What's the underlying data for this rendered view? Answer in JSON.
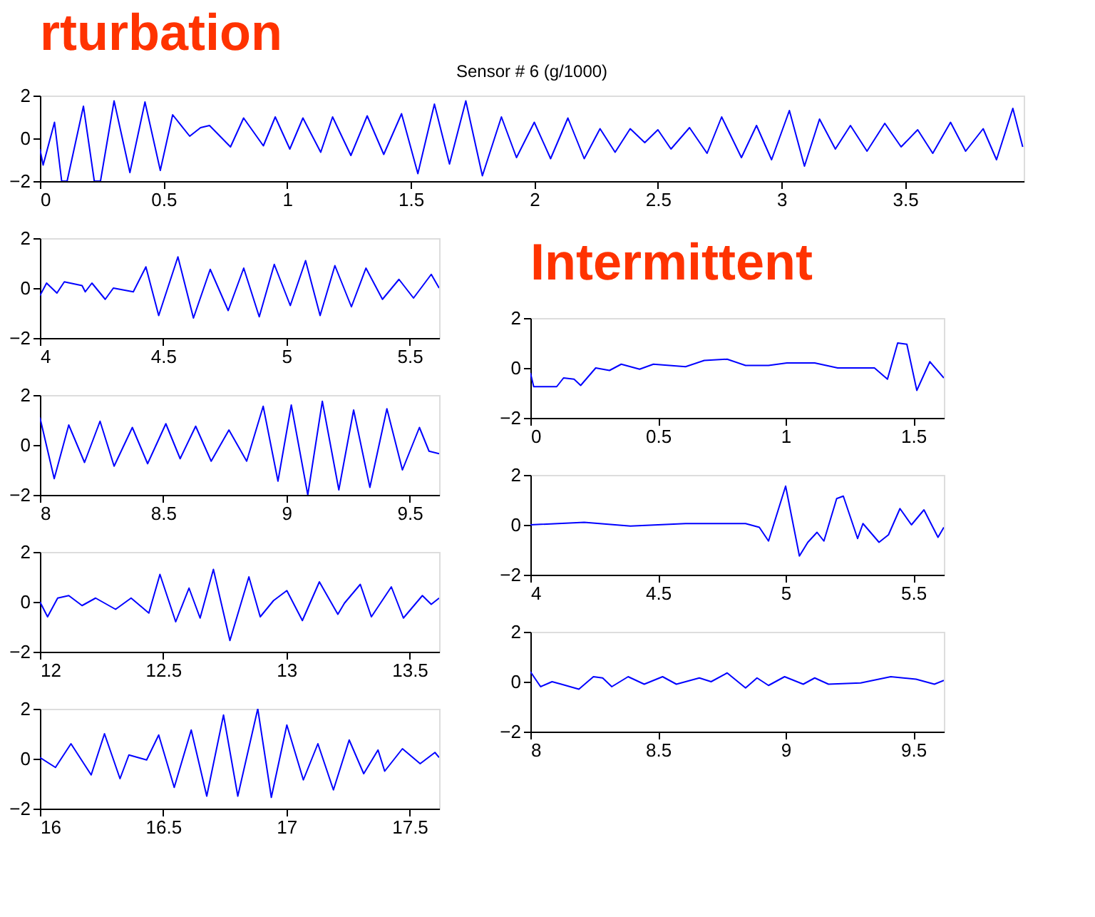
{
  "chart_data": [
    {
      "type": "line",
      "title": "Sensor # 6 (g/1000)",
      "annotations": [
        "rturbation"
      ],
      "x": [
        0,
        0.013,
        0.059,
        0.088,
        0.11,
        0.176,
        0.22,
        0.245,
        0.3,
        0.364,
        0.425,
        0.487,
        0.537,
        0.606,
        0.65,
        0.686,
        0.771,
        0.824,
        0.904,
        0.952,
        1.011,
        1.064,
        1.136,
        1.184,
        1.258,
        1.324,
        1.391,
        1.463,
        1.529,
        1.596,
        1.657,
        1.723,
        1.79,
        1.867,
        1.928,
        2.0,
        2.066,
        2.136,
        2.202,
        2.266,
        2.327,
        2.388,
        2.447,
        2.5,
        2.553,
        2.628,
        2.699,
        2.758,
        2.838,
        2.899,
        2.96,
        3.032,
        3.093,
        3.154,
        3.218,
        3.279,
        3.346,
        3.418,
        3.484,
        3.551,
        3.612,
        3.684,
        3.745,
        3.816,
        3.87,
        3.936,
        3.976
      ],
      "series": [
        {
          "color": "#0000ff",
          "values": [
            -0.5,
            -1.25,
            0.75,
            -2,
            -2,
            1.5,
            -2,
            -2,
            1.75,
            -1.6,
            1.7,
            -1.5,
            1.1,
            0.1,
            0.5,
            0.6,
            -0.4,
            0.95,
            -0.35,
            1.0,
            -0.5,
            0.95,
            -0.65,
            1.0,
            -0.8,
            1.05,
            -0.75,
            1.15,
            -1.65,
            1.6,
            -1.2,
            1.75,
            -1.75,
            1.0,
            -0.9,
            0.75,
            -0.95,
            0.95,
            -0.95,
            0.45,
            -0.65,
            0.45,
            -0.2,
            0.4,
            -0.5,
            0.5,
            -0.7,
            1.0,
            -0.9,
            0.6,
            -1.0,
            1.3,
            -1.3,
            0.9,
            -0.5,
            0.6,
            -0.6,
            0.7,
            -0.4,
            0.4,
            -0.7,
            0.75,
            -0.6,
            0.45,
            -1.0,
            1.4,
            -0.4
          ]
        }
      ],
      "xlim": [
        0,
        3.98
      ],
      "xticks": [
        0,
        0.5,
        1,
        1.5,
        2,
        2.5,
        3,
        3.5
      ],
      "ylim": [
        -2,
        2
      ],
      "yticks": [
        -2,
        0,
        2
      ],
      "grid": false
    },
    {
      "type": "line",
      "x": [
        4,
        4.027,
        4.069,
        4.099,
        4.171,
        4.184,
        4.211,
        4.265,
        4.298,
        4.379,
        4.43,
        4.482,
        4.56,
        4.623,
        4.691,
        4.764,
        4.827,
        4.89,
        4.951,
        5.016,
        5.078,
        5.137,
        5.197,
        5.264,
        5.323,
        5.39,
        5.457,
        5.516,
        5.588,
        5.62
      ],
      "series": [
        {
          "color": "#0000ff",
          "values": [
            -0.3,
            0.2,
            -0.2,
            0.25,
            0.1,
            -0.15,
            0.2,
            -0.45,
            0.0,
            -0.15,
            0.85,
            -1.1,
            1.25,
            -1.2,
            0.75,
            -0.9,
            0.8,
            -1.15,
            0.95,
            -0.7,
            1.1,
            -1.1,
            0.9,
            -0.75,
            0.8,
            -0.45,
            0.35,
            -0.4,
            0.55,
            0
          ]
        }
      ],
      "xlim": [
        4,
        5.62
      ],
      "xticks": [
        4,
        4.5,
        5,
        5.5
      ],
      "ylim": [
        -2,
        2
      ],
      "yticks": [
        -2,
        0,
        2
      ],
      "grid": false
    },
    {
      "type": "line",
      "x": [
        8,
        8.058,
        8.117,
        8.181,
        8.244,
        8.301,
        8.375,
        8.437,
        8.511,
        8.569,
        8.632,
        8.695,
        8.767,
        8.839,
        8.906,
        8.966,
        9.02,
        9.087,
        9.146,
        9.213,
        9.273,
        9.339,
        9.408,
        9.471,
        9.54,
        9.579,
        9.62
      ],
      "series": [
        {
          "color": "#0000ff",
          "values": [
            1.1,
            -1.35,
            0.8,
            -0.7,
            0.95,
            -0.85,
            0.7,
            -0.75,
            0.85,
            -0.55,
            0.75,
            -0.65,
            0.6,
            -0.65,
            1.55,
            -1.45,
            1.6,
            -2.0,
            1.75,
            -1.8,
            1.4,
            -1.7,
            1.45,
            -1.0,
            0.7,
            -0.25,
            -0.35
          ]
        }
      ],
      "xlim": [
        8,
        9.62
      ],
      "xticks": [
        8,
        8.5,
        9,
        9.5
      ],
      "ylim": [
        -2,
        2
      ],
      "yticks": [
        -2,
        0,
        2
      ],
      "grid": false
    },
    {
      "type": "line",
      "x": [
        12,
        12.031,
        12.072,
        12.117,
        12.171,
        12.226,
        12.307,
        12.37,
        12.442,
        12.487,
        12.551,
        12.605,
        12.65,
        12.704,
        12.771,
        12.848,
        12.894,
        12.948,
        13.002,
        13.065,
        13.134,
        13.209,
        13.236,
        13.3,
        13.345,
        13.426,
        13.475,
        13.552,
        13.588,
        13.62
      ],
      "series": [
        {
          "color": "#0000ff",
          "values": [
            0,
            -0.6,
            0.15,
            0.25,
            -0.15,
            0.15,
            -0.3,
            0.15,
            -0.45,
            1.1,
            -0.8,
            0.55,
            -0.65,
            1.3,
            -1.55,
            1.0,
            -0.6,
            0.05,
            0.45,
            -0.75,
            0.8,
            -0.5,
            -0.05,
            0.7,
            -0.6,
            0.6,
            -0.65,
            0.25,
            -0.1,
            0.15
          ]
        }
      ],
      "xlim": [
        12,
        13.62
      ],
      "xticks": [
        12,
        12.5,
        13,
        13.5
      ],
      "ylim": [
        -2,
        2
      ],
      "yticks": [
        -2,
        0,
        2
      ],
      "grid": false
    },
    {
      "type": "line",
      "x": [
        16,
        16.063,
        16.126,
        16.208,
        16.262,
        16.325,
        16.361,
        16.433,
        16.482,
        16.545,
        16.614,
        16.677,
        16.745,
        16.803,
        16.884,
        16.939,
        17.002,
        17.069,
        17.128,
        17.191,
        17.255,
        17.314,
        17.372,
        17.399,
        17.471,
        17.543,
        17.603,
        17.62
      ],
      "series": [
        {
          "color": "#0000ff",
          "values": [
            0.05,
            -0.35,
            0.6,
            -0.65,
            1.0,
            -0.8,
            0.15,
            -0.05,
            0.95,
            -1.15,
            1.15,
            -1.5,
            1.75,
            -1.5,
            2.0,
            -1.55,
            1.35,
            -0.85,
            0.6,
            -1.25,
            0.75,
            -0.6,
            0.35,
            -0.5,
            0.4,
            -0.2,
            0.25,
            0.05
          ]
        }
      ],
      "xlim": [
        16,
        17.62
      ],
      "xticks": [
        16,
        16.5,
        17,
        17.5
      ],
      "ylim": [
        -2,
        2
      ],
      "yticks": [
        -2,
        0,
        2
      ],
      "grid": false
    },
    {
      "type": "line",
      "annotations": [
        "Intermittent"
      ],
      "x": [
        0,
        0.013,
        0.103,
        0.13,
        0.171,
        0.197,
        0.256,
        0.31,
        0.356,
        0.428,
        0.482,
        0.608,
        0.681,
        0.771,
        0.843,
        0.933,
        1.005,
        1.114,
        1.204,
        1.348,
        1.399,
        1.439,
        1.475,
        1.514,
        1.565,
        1.62
      ],
      "series": [
        {
          "color": "#0000ff",
          "values": [
            -0.2,
            -0.75,
            -0.75,
            -0.4,
            -0.45,
            -0.7,
            0.0,
            -0.1,
            0.15,
            -0.05,
            0.15,
            0.05,
            0.3,
            0.35,
            0.1,
            0.1,
            0.2,
            0.2,
            0.0,
            0.0,
            -0.45,
            1.0,
            0.95,
            -0.9,
            0.25,
            -0.4
          ]
        }
      ],
      "xlim": [
        0,
        1.62
      ],
      "xticks": [
        0,
        0.5,
        1,
        1.5
      ],
      "ylim": [
        -2,
        2
      ],
      "yticks": [
        -2,
        0,
        2
      ],
      "grid": false
    },
    {
      "type": "line",
      "x": [
        4,
        4.211,
        4.392,
        4.608,
        4.843,
        4.897,
        4.933,
        5.0,
        5.054,
        5.087,
        5.123,
        5.15,
        5.2,
        5.226,
        5.282,
        5.303,
        5.366,
        5.403,
        5.448,
        5.493,
        5.542,
        5.597,
        5.62
      ],
      "series": [
        {
          "color": "#0000ff",
          "values": [
            0,
            0.1,
            -0.05,
            0.05,
            0.05,
            -0.1,
            -0.65,
            1.55,
            -1.25,
            -0.7,
            -0.3,
            -0.65,
            1.05,
            1.15,
            -0.55,
            0.05,
            -0.7,
            -0.4,
            0.65,
            0.0,
            0.6,
            -0.5,
            -0.1
          ]
        }
      ],
      "xlim": [
        4,
        5.62
      ],
      "xticks": [
        4,
        4.5,
        5,
        5.5
      ],
      "ylim": [
        -2,
        2
      ],
      "yticks": [
        -2,
        0,
        2
      ],
      "grid": false
    },
    {
      "type": "line",
      "x": [
        8,
        8.04,
        8.085,
        8.121,
        8.19,
        8.247,
        8.283,
        8.319,
        8.383,
        8.446,
        8.518,
        8.572,
        8.662,
        8.708,
        8.771,
        8.843,
        8.888,
        8.933,
        8.996,
        9.069,
        9.114,
        9.168,
        9.294,
        9.412,
        9.511,
        9.583,
        9.62
      ],
      "series": [
        {
          "color": "#0000ff",
          "values": [
            0.4,
            -0.2,
            0.0,
            -0.1,
            -0.3,
            0.2,
            0.15,
            -0.2,
            0.2,
            -0.1,
            0.2,
            -0.1,
            0.15,
            0.0,
            0.35,
            -0.25,
            0.15,
            -0.15,
            0.2,
            -0.1,
            0.15,
            -0.1,
            -0.05,
            0.2,
            0.1,
            -0.1,
            0.05
          ]
        }
      ],
      "xlim": [
        8,
        9.62
      ],
      "xticks": [
        8,
        8.5,
        9,
        9.5
      ],
      "ylim": [
        -2,
        2
      ],
      "yticks": [
        -2,
        0,
        2
      ],
      "grid": false
    }
  ]
}
